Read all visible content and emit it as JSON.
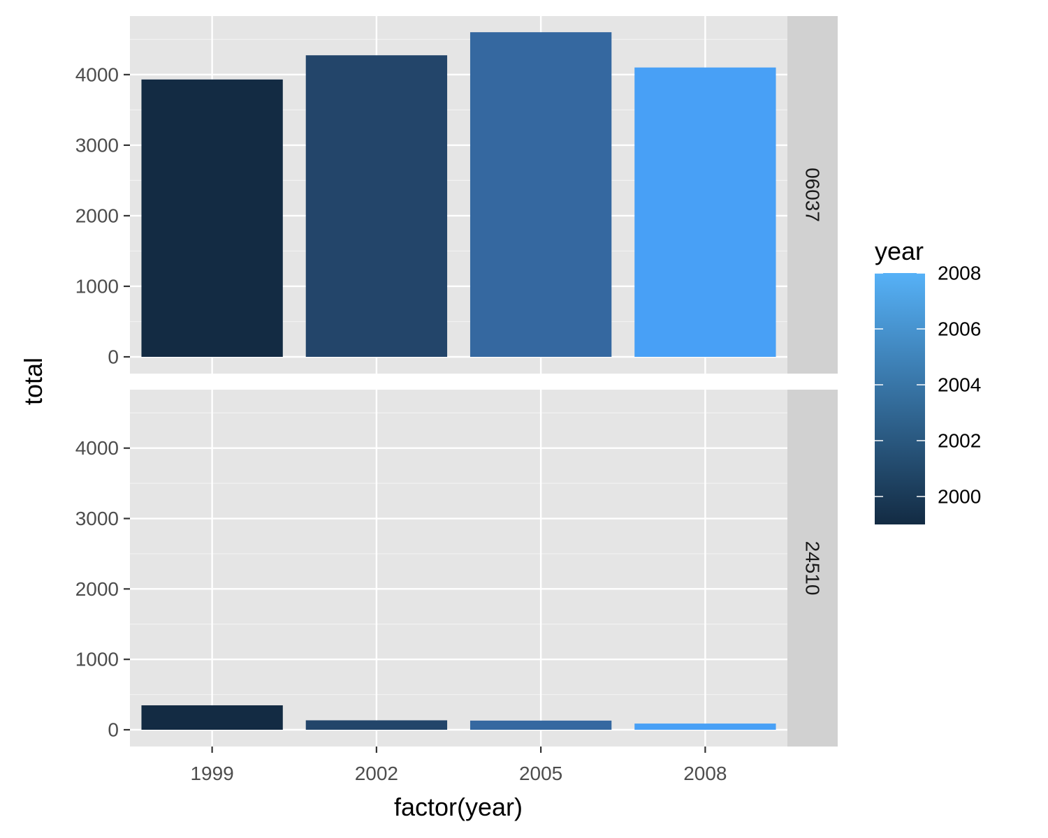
{
  "chart_data": {
    "type": "bar",
    "xlabel": "factor(year)",
    "ylabel": "total",
    "categories": [
      "1999",
      "2002",
      "2005",
      "2008"
    ],
    "ylim": [
      0,
      4830
    ],
    "yticks": [
      0,
      1000,
      2000,
      3000,
      4000
    ],
    "ytick_labels": [
      "0",
      "1000",
      "2000",
      "3000",
      "4000"
    ],
    "grid": true,
    "facets": [
      {
        "strip_label": "06037",
        "values": [
          3931,
          4274,
          4601,
          4101
        ]
      },
      {
        "strip_label": "24510",
        "values": [
          347,
          134,
          130,
          88
        ]
      }
    ],
    "legend": {
      "title": "year",
      "position": "right",
      "type": "colorbar",
      "range": [
        1999,
        2008
      ],
      "ticks": [
        2000,
        2002,
        2004,
        2006,
        2008
      ],
      "tick_labels": [
        "2000",
        "2002",
        "2004",
        "2006",
        "2008"
      ],
      "color_low": "#132B43",
      "color_high": "#56B1F7"
    },
    "bar_colors": [
      "#132B43",
      "#23456A",
      "#3568A0",
      "#48A0F6"
    ],
    "panel_background": "#E5E5E5",
    "strip_background": "#D1D1D1"
  }
}
